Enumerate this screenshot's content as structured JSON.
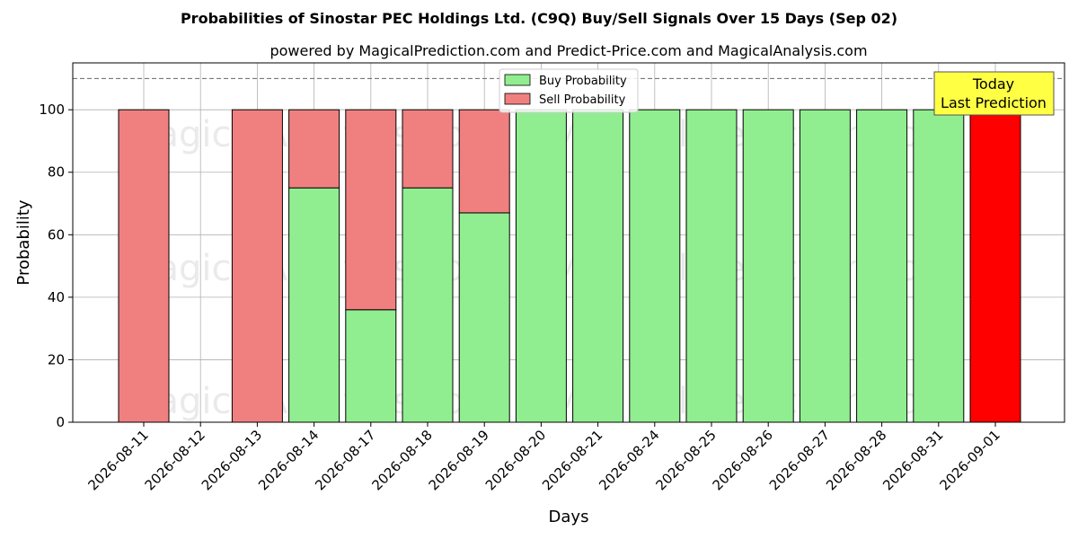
{
  "chart_data": {
    "type": "bar",
    "stacked": true,
    "title": "Probabilities of Sinostar PEC Holdings Ltd. (C9Q) Buy/Sell Signals Over 15 Days (Sep 02)",
    "subtitle": "powered by MagicalPrediction.com and Predict-Price.com and MagicalAnalysis.com",
    "xlabel": "Days",
    "ylabel": "Probability",
    "ylim": [
      0,
      115
    ],
    "yticks": [
      0,
      20,
      40,
      60,
      80,
      100
    ],
    "grid": true,
    "legend_position": "top-center",
    "reference_line": 110,
    "categories": [
      "2026-08-11",
      "2026-08-12",
      "2026-08-13",
      "2026-08-14",
      "2026-08-17",
      "2026-08-18",
      "2026-08-19",
      "2026-08-20",
      "2026-08-21",
      "2026-08-24",
      "2026-08-25",
      "2026-08-26",
      "2026-08-27",
      "2026-08-28",
      "2026-08-31",
      "2026-09-01"
    ],
    "series": [
      {
        "name": "Buy Probability",
        "color": "#90ee90",
        "values": [
          0,
          null,
          0,
          75,
          36,
          75,
          67,
          100,
          100,
          100,
          100,
          100,
          100,
          100,
          100,
          0
        ]
      },
      {
        "name": "Sell Probability",
        "color": "#f08080",
        "values": [
          100,
          null,
          100,
          25,
          64,
          25,
          33,
          0,
          0,
          0,
          0,
          0,
          0,
          0,
          0,
          100
        ]
      }
    ],
    "highlight": {
      "category": "2026-09-01",
      "color": "#ff0000"
    },
    "annotation": {
      "lines": [
        "Today",
        "Last Prediction"
      ],
      "bg_color": "#ffff44"
    },
    "watermarks": [
      "MagicalAnalysis.com",
      "MagicalPrediction.com"
    ]
  }
}
